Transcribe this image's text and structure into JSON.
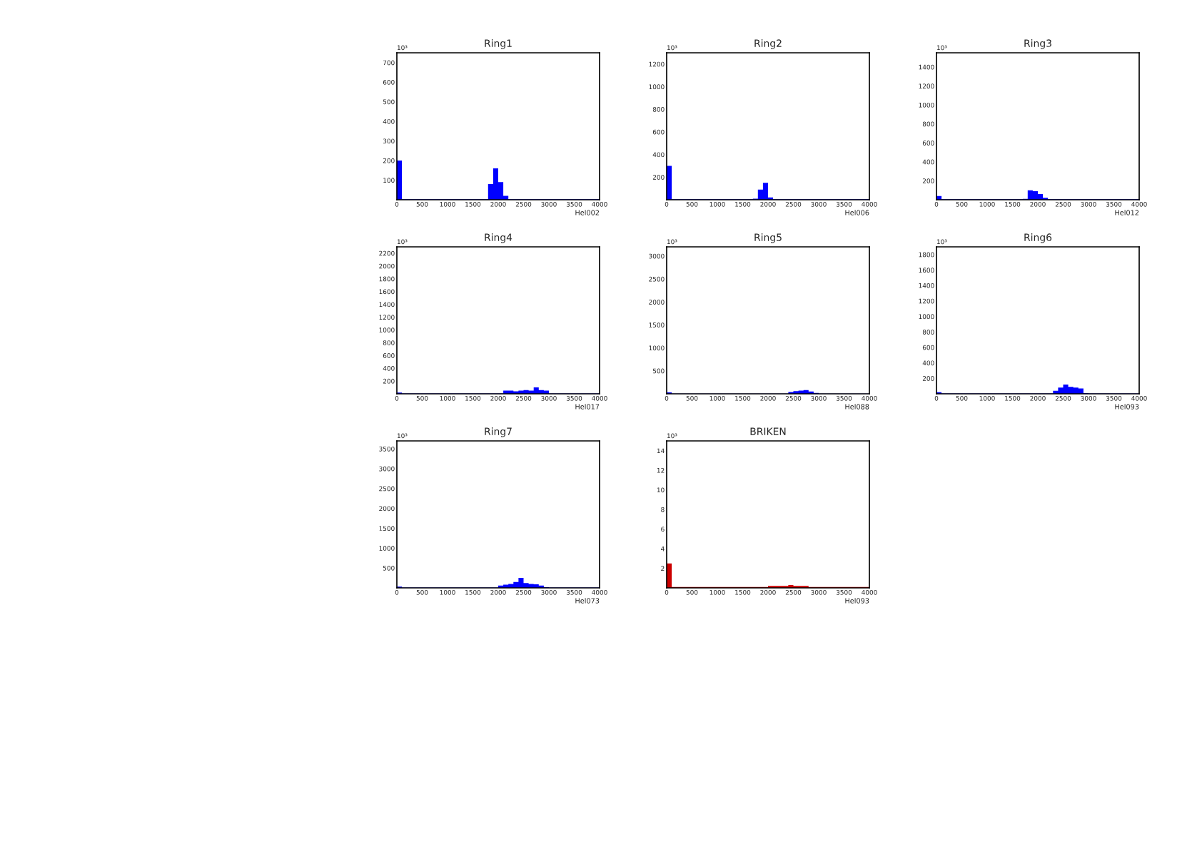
{
  "chart_data": [
    {
      "type": "histogram",
      "title": "Ring1",
      "xlabel": "Hel002",
      "annotations": [
        "10³"
      ],
      "color": "#0000ff",
      "bins": [
        0,
        100,
        200,
        300,
        400,
        500,
        600,
        700,
        800,
        900,
        1000,
        1100,
        1200,
        1300,
        1400,
        1500,
        1600,
        1700,
        1800,
        1900,
        2000,
        2100,
        2200,
        2300,
        2400,
        2500,
        2600,
        2700,
        2800,
        2900,
        3000,
        3100,
        3200,
        3300,
        3400,
        3500,
        3600,
        3700,
        3800,
        3900,
        4000
      ],
      "values": [
        200,
        3,
        3,
        3,
        3,
        3,
        3,
        3,
        3,
        3,
        3,
        3,
        3,
        3,
        3,
        3,
        3,
        3,
        80,
        160,
        90,
        20,
        3,
        3,
        3,
        3,
        3,
        3,
        3,
        3,
        3,
        3,
        3,
        3,
        3,
        3,
        3,
        3,
        3,
        3
      ],
      "xlim": [
        0,
        4000
      ],
      "xticks": [
        0,
        500,
        1000,
        1500,
        2000,
        2500,
        3000,
        3500,
        4000
      ],
      "ylim": [
        0,
        750
      ],
      "yticks": [
        100,
        200,
        300,
        400,
        500,
        600,
        700
      ]
    },
    {
      "type": "histogram",
      "title": "Ring2",
      "xlabel": "Hel006",
      "annotations": [
        "10³"
      ],
      "color": "#0000ff",
      "bins": [
        0,
        100,
        200,
        300,
        400,
        500,
        600,
        700,
        800,
        900,
        1000,
        1100,
        1200,
        1300,
        1400,
        1500,
        1600,
        1700,
        1800,
        1900,
        2000,
        2100,
        2200,
        2300,
        2400,
        2500,
        2600,
        2700,
        2800,
        2900,
        3000,
        3100,
        3200,
        3300,
        3400,
        3500,
        3600,
        3700,
        3800,
        3900,
        4000
      ],
      "values": [
        300,
        5,
        5,
        5,
        5,
        5,
        5,
        5,
        5,
        5,
        5,
        5,
        5,
        5,
        5,
        5,
        5,
        10,
        90,
        150,
        20,
        5,
        5,
        5,
        5,
        5,
        5,
        5,
        5,
        5,
        5,
        5,
        5,
        5,
        5,
        5,
        5,
        5,
        5,
        5
      ],
      "xlim": [
        0,
        4000
      ],
      "xticks": [
        0,
        500,
        1000,
        1500,
        2000,
        2500,
        3000,
        3500,
        4000
      ],
      "ylim": [
        0,
        1300
      ],
      "yticks": [
        200,
        400,
        600,
        800,
        1000,
        1200
      ]
    },
    {
      "type": "histogram",
      "title": "Ring3",
      "xlabel": "Hel012",
      "annotations": [
        "10³"
      ],
      "color": "#0000ff",
      "bins": [
        0,
        100,
        200,
        300,
        400,
        500,
        600,
        700,
        800,
        900,
        1000,
        1100,
        1200,
        1300,
        1400,
        1500,
        1600,
        1700,
        1800,
        1900,
        2000,
        2100,
        2200,
        2300,
        2400,
        2500,
        2600,
        2700,
        2800,
        2900,
        3000,
        3100,
        3200,
        3300,
        3400,
        3500,
        3600,
        3700,
        3800,
        3900,
        4000
      ],
      "values": [
        40,
        5,
        5,
        5,
        5,
        5,
        5,
        5,
        5,
        5,
        5,
        5,
        5,
        5,
        5,
        5,
        5,
        10,
        100,
        90,
        60,
        20,
        5,
        5,
        5,
        5,
        5,
        5,
        5,
        5,
        5,
        5,
        5,
        5,
        5,
        5,
        5,
        5,
        5,
        5
      ],
      "xlim": [
        0,
        4000
      ],
      "xticks": [
        0,
        500,
        1000,
        1500,
        2000,
        2500,
        3000,
        3500,
        4000
      ],
      "ylim": [
        0,
        1550
      ],
      "yticks": [
        200,
        400,
        600,
        800,
        1000,
        1200,
        1400
      ]
    },
    {
      "type": "histogram",
      "title": "Ring4",
      "xlabel": "Hel017",
      "annotations": [
        "10³"
      ],
      "color": "#0000ff",
      "bins": [
        0,
        100,
        200,
        300,
        400,
        500,
        600,
        700,
        800,
        900,
        1000,
        1100,
        1200,
        1300,
        1400,
        1500,
        1600,
        1700,
        1800,
        1900,
        2000,
        2100,
        2200,
        2300,
        2400,
        2500,
        2600,
        2700,
        2800,
        2900,
        3000,
        3100,
        3200,
        3300,
        3400,
        3500,
        3600,
        3700,
        3800,
        3900,
        4000
      ],
      "values": [
        20,
        5,
        5,
        5,
        5,
        5,
        5,
        5,
        5,
        5,
        5,
        5,
        5,
        5,
        5,
        5,
        5,
        5,
        5,
        5,
        5,
        50,
        50,
        40,
        50,
        60,
        50,
        100,
        60,
        50,
        5,
        5,
        5,
        5,
        5,
        5,
        5,
        5,
        5,
        5
      ],
      "xlim": [
        0,
        4000
      ],
      "xticks": [
        0,
        500,
        1000,
        1500,
        2000,
        2500,
        3000,
        3500,
        4000
      ],
      "ylim": [
        0,
        2300
      ],
      "yticks": [
        200,
        400,
        600,
        800,
        1000,
        1200,
        1400,
        1600,
        1800,
        2000,
        2200
      ]
    },
    {
      "type": "histogram",
      "title": "Ring5",
      "xlabel": "Hel088",
      "annotations": [
        "10³"
      ],
      "color": "#0000ff",
      "bins": [
        0,
        100,
        200,
        300,
        400,
        500,
        600,
        700,
        800,
        900,
        1000,
        1100,
        1200,
        1300,
        1400,
        1500,
        1600,
        1700,
        1800,
        1900,
        2000,
        2100,
        2200,
        2300,
        2400,
        2500,
        2600,
        2700,
        2800,
        2900,
        3000,
        3100,
        3200,
        3300,
        3400,
        3500,
        3600,
        3700,
        3800,
        3900,
        4000
      ],
      "values": [
        30,
        5,
        5,
        5,
        5,
        5,
        5,
        5,
        5,
        5,
        5,
        5,
        5,
        5,
        5,
        5,
        5,
        5,
        5,
        5,
        5,
        5,
        5,
        5,
        40,
        60,
        70,
        80,
        50,
        20,
        5,
        5,
        5,
        5,
        5,
        5,
        5,
        5,
        5,
        5
      ],
      "xlim": [
        0,
        4000
      ],
      "xticks": [
        0,
        500,
        1000,
        1500,
        2000,
        2500,
        3000,
        3500,
        4000
      ],
      "ylim": [
        0,
        3200
      ],
      "yticks": [
        500,
        1000,
        1500,
        2000,
        2500,
        3000
      ]
    },
    {
      "type": "histogram",
      "title": "Ring6",
      "xlabel": "Hel093",
      "annotations": [
        "10³"
      ],
      "color": "#0000ff",
      "bins": [
        0,
        100,
        200,
        300,
        400,
        500,
        600,
        700,
        800,
        900,
        1000,
        1100,
        1200,
        1300,
        1400,
        1500,
        1600,
        1700,
        1800,
        1900,
        2000,
        2100,
        2200,
        2300,
        2400,
        2500,
        2600,
        2700,
        2800,
        2900,
        3000,
        3100,
        3200,
        3300,
        3400,
        3500,
        3600,
        3700,
        3800,
        3900,
        4000
      ],
      "values": [
        20,
        5,
        5,
        5,
        5,
        5,
        5,
        5,
        5,
        5,
        5,
        5,
        5,
        5,
        5,
        5,
        5,
        5,
        5,
        5,
        5,
        5,
        5,
        40,
        80,
        120,
        90,
        80,
        70,
        10,
        5,
        5,
        5,
        5,
        5,
        5,
        5,
        5,
        5,
        5
      ],
      "xlim": [
        0,
        4000
      ],
      "xticks": [
        0,
        500,
        1000,
        1500,
        2000,
        2500,
        3000,
        3500,
        4000
      ],
      "ylim": [
        0,
        1900
      ],
      "yticks": [
        200,
        400,
        600,
        800,
        1000,
        1200,
        1400,
        1600,
        1800
      ]
    },
    {
      "type": "histogram",
      "title": "Ring7",
      "xlabel": "Hel073",
      "annotations": [
        "10³"
      ],
      "color": "#0000ff",
      "bins": [
        0,
        100,
        200,
        300,
        400,
        500,
        600,
        700,
        800,
        900,
        1000,
        1100,
        1200,
        1300,
        1400,
        1500,
        1600,
        1700,
        1800,
        1900,
        2000,
        2100,
        2200,
        2300,
        2400,
        2500,
        2600,
        2700,
        2800,
        2900,
        3000,
        3100,
        3200,
        3300,
        3400,
        3500,
        3600,
        3700,
        3800,
        3900,
        4000
      ],
      "values": [
        30,
        10,
        10,
        10,
        10,
        10,
        10,
        10,
        10,
        10,
        10,
        10,
        10,
        10,
        10,
        10,
        10,
        10,
        10,
        10,
        60,
        80,
        100,
        150,
        250,
        120,
        100,
        90,
        60,
        20,
        10,
        10,
        10,
        10,
        10,
        10,
        10,
        10,
        10,
        10
      ],
      "xlim": [
        0,
        4000
      ],
      "xticks": [
        0,
        500,
        1000,
        1500,
        2000,
        2500,
        3000,
        3500,
        4000
      ],
      "ylim": [
        0,
        3700
      ],
      "yticks": [
        500,
        1000,
        1500,
        2000,
        2500,
        3000,
        3500
      ]
    },
    {
      "type": "histogram",
      "title": "BRIKEN",
      "xlabel": "Hel093",
      "annotations": [
        "10³"
      ],
      "color": "#cc0000",
      "bins": [
        0,
        100,
        200,
        300,
        400,
        500,
        600,
        700,
        800,
        900,
        1000,
        1100,
        1200,
        1300,
        1400,
        1500,
        1600,
        1700,
        1800,
        1900,
        2000,
        2100,
        2200,
        2300,
        2400,
        2500,
        2600,
        2700,
        2800,
        2900,
        3000,
        3100,
        3200,
        3300,
        3400,
        3500,
        3600,
        3700,
        3800,
        3900,
        4000
      ],
      "values": [
        2.5,
        0.1,
        0.1,
        0.1,
        0.1,
        0.1,
        0.1,
        0.1,
        0.1,
        0.1,
        0.1,
        0.1,
        0.1,
        0.1,
        0.1,
        0.1,
        0.1,
        0.1,
        0.1,
        0.1,
        0.2,
        0.2,
        0.2,
        0.2,
        0.3,
        0.2,
        0.2,
        0.2,
        0.1,
        0.1,
        0.1,
        0.1,
        0.1,
        0.1,
        0.1,
        0.1,
        0.1,
        0.1,
        0.1,
        0.1
      ],
      "xlim": [
        0,
        4000
      ],
      "xticks": [
        0,
        500,
        1000,
        1500,
        2000,
        2500,
        3000,
        3500,
        4000
      ],
      "ylim": [
        0,
        15
      ],
      "yticks": [
        2,
        4,
        6,
        8,
        10,
        12,
        14
      ]
    }
  ]
}
